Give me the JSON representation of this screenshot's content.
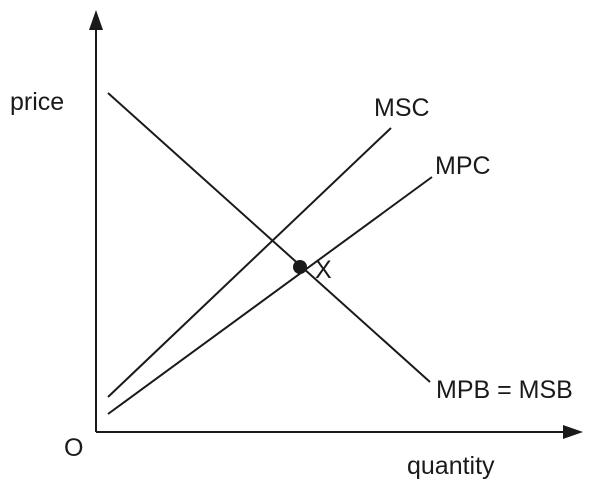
{
  "axes": {
    "y_label": "price",
    "x_label": "quantity",
    "origin_label": "O"
  },
  "curves": {
    "msc": "MSC",
    "mpc": "MPC",
    "demand": "MPB = MSB"
  },
  "point": {
    "label": "X"
  }
}
